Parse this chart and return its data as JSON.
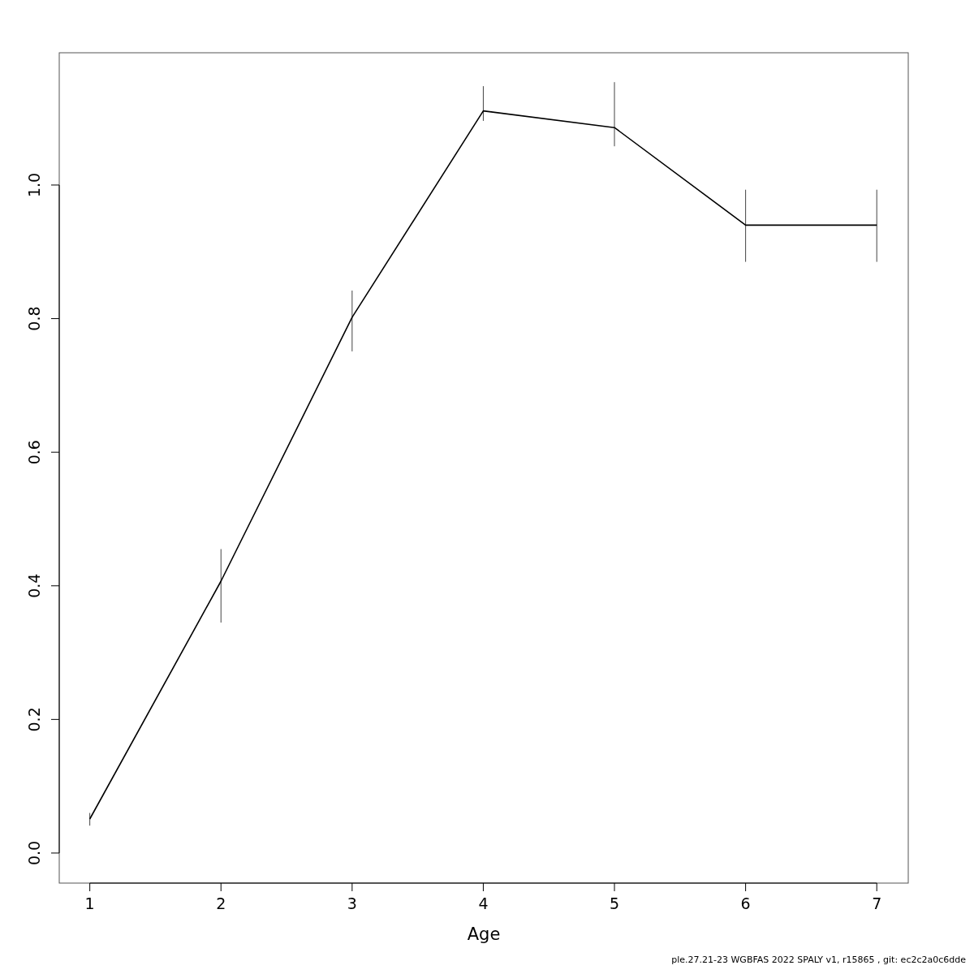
{
  "chart_data": {
    "type": "line",
    "xlabel": "Age",
    "x": [
      1,
      2,
      3,
      4,
      5,
      6,
      7
    ],
    "values": [
      0.051,
      0.407,
      0.802,
      1.111,
      1.086,
      0.94,
      0.94
    ],
    "errors": [
      [
        0.041,
        0.06
      ],
      [
        0.345,
        0.455
      ],
      [
        0.751,
        0.842
      ],
      [
        1.096,
        1.148
      ],
      [
        1.058,
        1.154
      ],
      [
        0.885,
        0.993
      ],
      [
        0.885,
        0.993
      ]
    ],
    "color": "#000000",
    "marker": "none",
    "line_style": "solid",
    "grid": false,
    "xlim": [
      0.767,
      7.24
    ],
    "ylim": [
      -0.045,
      1.198
    ],
    "xticks": [
      1,
      2,
      3,
      4,
      5,
      6,
      7
    ],
    "yticks": [
      {
        "value": 0,
        "label": "0.0"
      },
      {
        "value": 0.2,
        "label": "0.2"
      },
      {
        "value": 0.4,
        "label": "0.4"
      },
      {
        "value": 0.6,
        "label": "0.6"
      },
      {
        "value": 0.8,
        "label": "0.8"
      },
      {
        "value": 1,
        "label": "1.0"
      }
    ],
    "annotations": [
      "ple.27.21-23 WGBFAS 2022 SPALY v1, r15865 , git: ec2c2a0c6dde"
    ]
  }
}
